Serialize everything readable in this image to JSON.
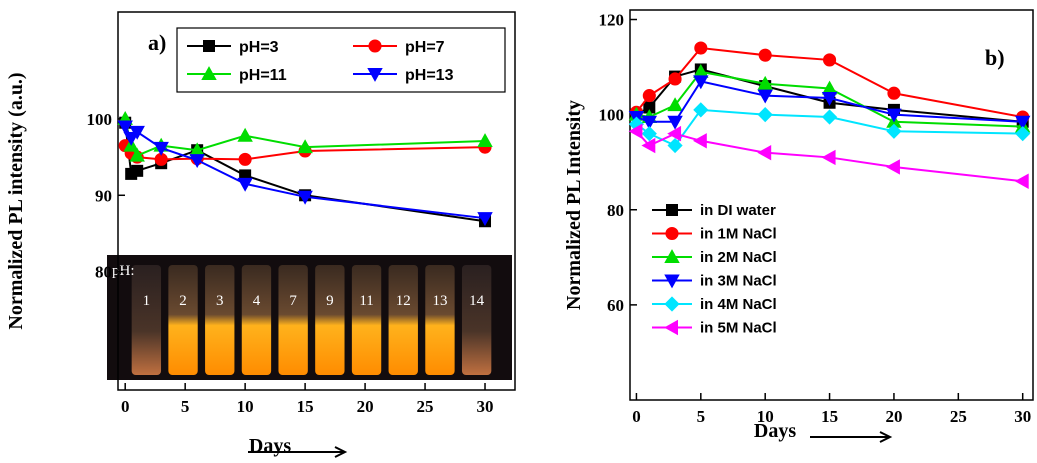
{
  "chart_data": [
    {
      "type": "line",
      "annotation": "a)",
      "x_label": "Days",
      "y_label": "Normalized PL intensity (a.u.)",
      "x": [
        0,
        0.5,
        1,
        3,
        6,
        10,
        15,
        30
      ],
      "xlim": [
        -0.6,
        32.5
      ],
      "xticks": [
        0,
        5,
        10,
        15,
        20,
        25,
        30
      ],
      "ylim": [
        64.5,
        114
      ],
      "yticks": [
        80,
        90,
        100
      ],
      "legend": "upper right",
      "series": [
        {
          "name": "pH=3",
          "color": "#000000",
          "marker": "square",
          "values": [
            99.5,
            92.8,
            93.2,
            94.2,
            95.9,
            92.6,
            90.0,
            86.6
          ]
        },
        {
          "name": "pH=7",
          "color": "#ff0000",
          "marker": "circle",
          "values": [
            96.5,
            95.5,
            95.0,
            94.7,
            94.8,
            94.7,
            95.8,
            96.3
          ]
        },
        {
          "name": "pH=11",
          "color": "#00dd00",
          "marker": "triangle-up",
          "values": [
            100.0,
            96.5,
            95.2,
            96.5,
            95.9,
            97.8,
            96.3,
            97.1
          ]
        },
        {
          "name": "pH=13",
          "color": "#0000ff",
          "marker": "triangle-down",
          "values": [
            99.0,
            97.5,
            98.3,
            96.2,
            94.6,
            91.5,
            89.8,
            87.0
          ]
        }
      ],
      "inset": {
        "title": "pH:",
        "labels": [
          "1",
          "2",
          "3",
          "4",
          "7",
          "9",
          "11",
          "12",
          "13",
          "14"
        ]
      }
    },
    {
      "type": "line",
      "annotation": "b)",
      "x_label": "Days",
      "y_label": "Normalized PL Intensity",
      "x": [
        0,
        1,
        3,
        5,
        10,
        15,
        20,
        30
      ],
      "xlim": [
        -0.5,
        30.8
      ],
      "xticks": [
        0,
        5,
        10,
        15,
        20,
        25,
        30
      ],
      "ylim": [
        40,
        122
      ],
      "yticks": [
        60,
        80,
        100,
        120
      ],
      "legend": "lower left",
      "series": [
        {
          "name": "in DI water",
          "color": "#000000",
          "marker": "square",
          "values": [
            100,
            101.5,
            108,
            109.5,
            106,
            102.5,
            101,
            98.5
          ]
        },
        {
          "name": "in 1M NaCl",
          "color": "#ff0000",
          "marker": "circle",
          "values": [
            100.5,
            104,
            107.5,
            114,
            112.5,
            111.5,
            104.5,
            99.5
          ]
        },
        {
          "name": "in 2M NaCl",
          "color": "#00dd00",
          "marker": "triangle-up",
          "values": [
            100,
            99.5,
            102,
            109,
            106.5,
            105.5,
            98.5,
            97.5
          ]
        },
        {
          "name": "in 3M NaCl",
          "color": "#0000ff",
          "marker": "triangle-down",
          "values": [
            99.5,
            98.5,
            98.5,
            107,
            104,
            103.5,
            100,
            98.5
          ]
        },
        {
          "name": "in 4M NaCl",
          "color": "#00e5ff",
          "marker": "diamond",
          "values": [
            98,
            96,
            93.5,
            101,
            100,
            99.5,
            96.5,
            96
          ]
        },
        {
          "name": "in 5M NaCl",
          "color": "#ff00ff",
          "marker": "triangle-left",
          "values": [
            96.5,
            93.5,
            96,
            94.5,
            92,
            91,
            89,
            86
          ]
        }
      ]
    }
  ]
}
